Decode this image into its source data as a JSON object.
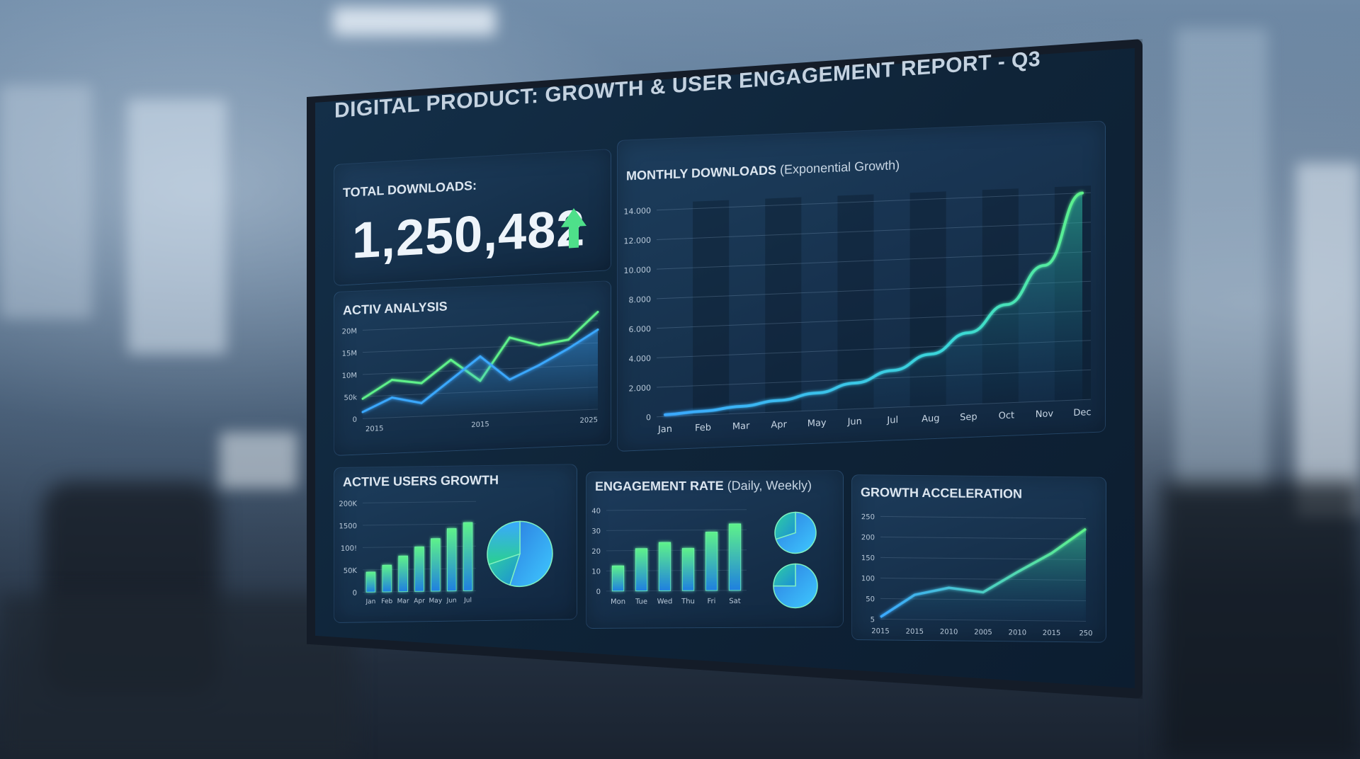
{
  "dashboard": {
    "title": "DIGITAL PRODUCT: GROWTH & USER ENGAGEMENT REPORT - Q3",
    "total_downloads": {
      "label": "TOTAL DOWNLOADS:",
      "value": "1,250,482",
      "trend_icon": "arrow-up-icon",
      "trend_color": "#4ee08a"
    },
    "accent_colors": {
      "green": "#5ef28a",
      "blue": "#3aa8ff"
    }
  },
  "chart_data": [
    {
      "id": "activ-analysis",
      "type": "line",
      "title": "ACTIV ANALYSIS",
      "yticks": [
        "20M",
        "15M",
        "10M",
        "50k",
        "0"
      ],
      "xticks": [
        "2015",
        "2015",
        "2025"
      ],
      "ylim": [
        0,
        20
      ],
      "series": [
        {
          "color": "#5ef28a",
          "values": [
            4.5,
            8.5,
            7.5,
            12.5,
            7.5,
            17,
            15,
            16,
            22
          ]
        },
        {
          "color": "#3aa8ff",
          "values": [
            1.5,
            4.5,
            3,
            8,
            13,
            7.5,
            10.5,
            14,
            18
          ]
        }
      ]
    },
    {
      "id": "monthly-downloads",
      "type": "area",
      "title": "MONTHLY DOWNLOADS",
      "subtitle": "(Exponential Growth)",
      "categories": [
        "Jan",
        "Feb",
        "Mar",
        "Apr",
        "May",
        "Jun",
        "Jul",
        "Aug",
        "Sep",
        "Oct",
        "Nov",
        "Dec"
      ],
      "yticks": [
        "14.000",
        "12.000",
        "10.000",
        "8.000",
        "6.000",
        "4.000",
        "2.000",
        "0"
      ],
      "ylim": [
        0,
        14000
      ],
      "values": [
        120,
        260,
        480,
        780,
        1180,
        1750,
        2500,
        3500,
        4850,
        6650,
        9200,
        14000
      ],
      "line_color_start": "#3aa8ff",
      "line_color_end": "#5ef28a"
    },
    {
      "id": "active-users-growth",
      "type": "bar",
      "title": "ACTIVE USERS GROWTH",
      "categories": [
        "Jan",
        "Feb",
        "Mar",
        "Apr",
        "May",
        "Jun",
        "Jul"
      ],
      "yticks": [
        "200K",
        "1500",
        "100!",
        "50K",
        "0"
      ],
      "ylim": [
        0,
        200
      ],
      "values": [
        45,
        60,
        80,
        100,
        118,
        140,
        153
      ],
      "pie": [
        55,
        15,
        30
      ]
    },
    {
      "id": "engagement-rate",
      "type": "bar",
      "title": "ENGAGEMENT RATE",
      "subtitle": "(Daily, Weekly)",
      "categories": [
        "Mon",
        "Tue",
        "Wed",
        "Thu",
        "Fri",
        "Sat"
      ],
      "yticks": [
        "40",
        "30",
        "20",
        "10",
        "0"
      ],
      "ylim": [
        0,
        40
      ],
      "values": [
        12.5,
        21,
        24,
        21,
        29,
        33
      ],
      "pies": [
        [
          70,
          30
        ],
        [
          75,
          25
        ]
      ]
    },
    {
      "id": "growth-acceleration",
      "type": "area",
      "title": "GROWTH ACCELERATION",
      "yticks": [
        "250",
        "200",
        "150",
        "100",
        "50",
        "5"
      ],
      "xticks": [
        "2015",
        "2015",
        "2010",
        "2005",
        "2010",
        "2015",
        "250"
      ],
      "ylim": [
        0,
        250
      ],
      "values": [
        5,
        60,
        78,
        68,
        118,
        165,
        225
      ]
    }
  ]
}
